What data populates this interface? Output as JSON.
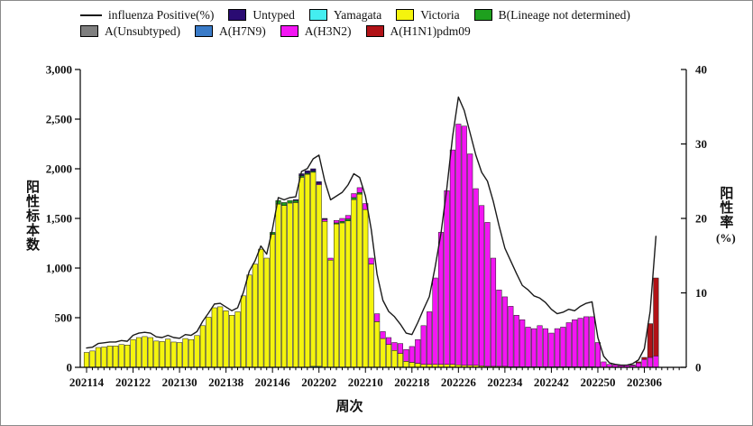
{
  "legend": {
    "items": [
      {
        "label": "influenza Positive(%)",
        "swatch": "line",
        "color": "#1a1a1a",
        "row": 1
      },
      {
        "label": "Untyped",
        "swatch": "box",
        "color": "#2a0b73",
        "row": 1
      },
      {
        "label": "Yamagata",
        "swatch": "box",
        "color": "#44eef0",
        "row": 1
      },
      {
        "label": "Victoria",
        "swatch": "box",
        "color": "#f4f40e",
        "row": 1
      },
      {
        "label": "B(Lineage not determined)",
        "swatch": "box",
        "color": "#1ea01e",
        "row": 1
      },
      {
        "label": "A(Unsubtyped)",
        "swatch": "box",
        "color": "#7f7f7f",
        "row": 2
      },
      {
        "label": "A(H7N9)",
        "swatch": "box",
        "color": "#3a7bc8",
        "row": 2
      },
      {
        "label": "A(H3N2)",
        "swatch": "box",
        "color": "#f316f3",
        "row": 2
      },
      {
        "label": "A(H1N1)pdm09",
        "swatch": "box",
        "color": "#b11217",
        "row": 2
      }
    ]
  },
  "chart_data": {
    "type": "bar",
    "subtype": "stacked-bars-with-line-overlay",
    "x_axis": {
      "label": "周次",
      "tick_labels": [
        "202114",
        "202122",
        "202130",
        "202138",
        "202146",
        "202202",
        "202210",
        "202218",
        "202226",
        "202234",
        "202242",
        "202250",
        "202306"
      ],
      "weeks": [
        "202114",
        "202115",
        "202116",
        "202117",
        "202118",
        "202119",
        "202120",
        "202121",
        "202122",
        "202123",
        "202124",
        "202125",
        "202126",
        "202127",
        "202128",
        "202129",
        "202130",
        "202131",
        "202132",
        "202133",
        "202134",
        "202135",
        "202136",
        "202137",
        "202138",
        "202139",
        "202140",
        "202141",
        "202142",
        "202143",
        "202144",
        "202145",
        "202146",
        "202147",
        "202148",
        "202149",
        "202150",
        "202151",
        "202152",
        "202201",
        "202202",
        "202203",
        "202204",
        "202205",
        "202206",
        "202207",
        "202208",
        "202209",
        "202210",
        "202211",
        "202212",
        "202213",
        "202214",
        "202215",
        "202216",
        "202217",
        "202218",
        "202219",
        "202220",
        "202221",
        "202222",
        "202223",
        "202224",
        "202225",
        "202226",
        "202227",
        "202228",
        "202229",
        "202230",
        "202231",
        "202232",
        "202233",
        "202234",
        "202235",
        "202236",
        "202237",
        "202238",
        "202239",
        "202240",
        "202241",
        "202242",
        "202243",
        "202244",
        "202245",
        "202246",
        "202247",
        "202248",
        "202249",
        "202250",
        "202251",
        "202252",
        "202301",
        "202302",
        "202303",
        "202304",
        "202305",
        "202306",
        "202307",
        "202308"
      ]
    },
    "y_left": {
      "label": "阳性标本数",
      "ticks": [
        "0",
        "500",
        "1,000",
        "1,500",
        "2,000",
        "2,500",
        "3,000"
      ],
      "tick_values": [
        0,
        500,
        1000,
        1500,
        2000,
        2500,
        3000
      ],
      "min": 0,
      "max": 3000
    },
    "y_right": {
      "label": "阳性率",
      "unit": "(%)",
      "ticks": [
        "0",
        "10",
        "20",
        "30",
        "40"
      ],
      "tick_values": [
        0,
        10,
        20,
        30,
        40
      ],
      "min": 0,
      "max": 40
    },
    "stack_order_bottom_to_top": [
      "yamagata",
      "victoria",
      "b_lineage_not_determined",
      "h3n2",
      "h1n1pdm09",
      "untyped"
    ],
    "series": [
      {
        "key": "yamagata",
        "name": "Yamagata",
        "color": "#44eef0",
        "values": [
          0,
          0,
          0,
          0,
          0,
          0,
          0,
          0,
          0,
          0,
          0,
          0,
          0,
          0,
          0,
          0,
          0,
          0,
          0,
          0,
          0,
          0,
          0,
          0,
          0,
          0,
          0,
          0,
          0,
          0,
          0,
          0,
          0,
          0,
          0,
          0,
          0,
          0,
          0,
          10,
          10,
          0,
          0,
          0,
          0,
          0,
          0,
          0,
          0,
          0,
          0,
          0,
          0,
          0,
          0,
          0,
          0,
          0,
          0,
          0,
          0,
          0,
          0,
          0,
          0,
          0,
          0,
          0,
          0,
          0,
          0,
          0,
          0,
          0,
          0,
          0,
          0,
          0,
          0,
          0,
          0,
          0,
          0,
          0,
          0,
          0,
          0,
          0,
          0,
          0,
          0,
          0,
          0,
          0,
          0,
          0,
          0,
          0,
          0
        ]
      },
      {
        "key": "victoria",
        "name": "Victoria",
        "color": "#f4f40e",
        "values": [
          150,
          165,
          200,
          205,
          215,
          215,
          230,
          225,
          280,
          300,
          310,
          300,
          265,
          260,
          285,
          255,
          250,
          290,
          280,
          320,
          420,
          505,
          600,
          610,
          570,
          525,
          560,
          720,
          930,
          1040,
          1190,
          1100,
          1340,
          1645,
          1630,
          1655,
          1660,
          1915,
          1945,
          1955,
          1830,
          1470,
          1080,
          1445,
          1455,
          1475,
          1690,
          1745,
          1590,
          1040,
          460,
          290,
          230,
          170,
          140,
          60,
          50,
          40,
          30,
          30,
          30,
          30,
          30,
          30,
          25,
          20,
          20,
          20,
          15,
          10,
          10,
          10,
          10,
          5,
          5,
          5,
          5,
          5,
          5,
          5,
          5,
          5,
          5,
          5,
          5,
          5,
          5,
          5,
          0,
          0,
          0,
          0,
          0,
          0,
          0,
          0,
          0,
          0,
          0
        ]
      },
      {
        "key": "b_lineage_not_determined",
        "name": "B(Lineage not determined)",
        "color": "#1ea01e",
        "values": [
          0,
          0,
          0,
          0,
          0,
          0,
          0,
          0,
          0,
          0,
          0,
          0,
          0,
          0,
          0,
          0,
          0,
          0,
          0,
          0,
          0,
          0,
          0,
          0,
          0,
          0,
          0,
          0,
          0,
          0,
          0,
          0,
          20,
          35,
          30,
          25,
          20,
          15,
          10,
          10,
          0,
          0,
          0,
          10,
          15,
          20,
          20,
          15,
          0,
          0,
          0,
          0,
          0,
          0,
          0,
          0,
          0,
          0,
          0,
          0,
          0,
          0,
          0,
          0,
          0,
          0,
          0,
          0,
          0,
          0,
          0,
          0,
          0,
          0,
          0,
          0,
          0,
          0,
          0,
          0,
          0,
          0,
          0,
          0,
          0,
          0,
          0,
          0,
          0,
          0,
          0,
          0,
          0,
          0,
          0,
          0,
          0,
          0,
          0
        ]
      },
      {
        "key": "h3n2",
        "name": "A(H3N2)",
        "color": "#f316f3",
        "values": [
          0,
          0,
          0,
          0,
          0,
          0,
          0,
          0,
          0,
          0,
          0,
          0,
          0,
          0,
          0,
          0,
          0,
          0,
          0,
          0,
          0,
          0,
          0,
          0,
          0,
          0,
          0,
          0,
          0,
          0,
          0,
          0,
          0,
          0,
          0,
          0,
          0,
          0,
          0,
          0,
          10,
          20,
          20,
          25,
          30,
          35,
          40,
          50,
          60,
          60,
          80,
          70,
          70,
          80,
          100,
          120,
          160,
          240,
          390,
          530,
          870,
          1330,
          1750,
          2160,
          2425,
          2410,
          2130,
          1780,
          1615,
          1450,
          1090,
          770,
          700,
          610,
          520,
          475,
          400,
          385,
          415,
          385,
          340,
          385,
          400,
          445,
          475,
          490,
          505,
          505,
          250,
          55,
          30,
          25,
          18,
          20,
          20,
          45,
          80,
          100,
          115
        ]
      },
      {
        "key": "h1n1pdm09",
        "name": "A(H1N1)pdm09",
        "color": "#b11217",
        "values": [
          0,
          0,
          0,
          0,
          0,
          0,
          0,
          0,
          0,
          0,
          0,
          0,
          0,
          0,
          0,
          0,
          0,
          0,
          0,
          0,
          0,
          0,
          0,
          0,
          0,
          0,
          0,
          0,
          0,
          0,
          0,
          0,
          0,
          0,
          0,
          0,
          0,
          0,
          0,
          0,
          0,
          0,
          0,
          0,
          0,
          0,
          0,
          0,
          0,
          0,
          0,
          0,
          0,
          0,
          0,
          0,
          0,
          0,
          0,
          0,
          0,
          0,
          0,
          0,
          0,
          0,
          0,
          0,
          0,
          0,
          0,
          0,
          0,
          0,
          0,
          0,
          0,
          0,
          0,
          0,
          0,
          0,
          0,
          0,
          0,
          0,
          0,
          0,
          0,
          0,
          0,
          0,
          0,
          0,
          5,
          10,
          20,
          340,
          785
        ]
      },
      {
        "key": "untyped",
        "name": "Untyped",
        "color": "#2a0b73",
        "values": [
          0,
          0,
          0,
          0,
          0,
          0,
          0,
          0,
          0,
          0,
          0,
          0,
          0,
          0,
          0,
          0,
          0,
          0,
          0,
          0,
          0,
          0,
          0,
          0,
          0,
          0,
          0,
          0,
          0,
          0,
          0,
          0,
          0,
          0,
          0,
          0,
          10,
          20,
          25,
          25,
          20,
          10,
          0,
          0,
          0,
          0,
          0,
          0,
          0,
          0,
          0,
          0,
          0,
          0,
          0,
          0,
          0,
          0,
          0,
          0,
          0,
          0,
          0,
          0,
          0,
          0,
          0,
          0,
          0,
          0,
          0,
          0,
          0,
          0,
          0,
          0,
          0,
          0,
          0,
          0,
          0,
          0,
          0,
          0,
          0,
          0,
          0,
          0,
          0,
          0,
          0,
          0,
          0,
          0,
          0,
          0,
          0,
          0,
          0
        ]
      }
    ],
    "line": {
      "name": "influenza Positive(%)",
      "color": "#1a1a1a",
      "axis": "right",
      "values": [
        2.6,
        2.7,
        3.2,
        3.3,
        3.4,
        3.4,
        3.6,
        3.5,
        4.3,
        4.6,
        4.7,
        4.6,
        4.1,
        4.0,
        4.3,
        4.0,
        3.9,
        4.4,
        4.3,
        4.8,
        6.2,
        7.3,
        8.5,
        8.6,
        8.1,
        7.6,
        8.0,
        10.1,
        12.9,
        14.3,
        16.3,
        15.2,
        18.6,
        22.8,
        22.5,
        22.8,
        22.9,
        26.3,
        26.7,
        28.0,
        28.5,
        25.0,
        22.5,
        23.0,
        23.5,
        24.5,
        26.0,
        25.5,
        23.0,
        18.5,
        12.5,
        9.0,
        7.5,
        6.8,
        5.8,
        4.6,
        4.4,
        6.0,
        7.8,
        9.5,
        13.5,
        18.0,
        24.0,
        31.0,
        36.3,
        34.5,
        31.5,
        28.5,
        26.2,
        25.0,
        22.3,
        19.0,
        16.0,
        14.3,
        12.6,
        11.0,
        10.4,
        9.6,
        9.3,
        8.7,
        7.8,
        7.2,
        7.4,
        7.8,
        7.6,
        8.2,
        8.6,
        8.8,
        4.0,
        1.5,
        0.6,
        0.4,
        0.3,
        0.3,
        0.5,
        1.0,
        2.5,
        7.5,
        17.6
      ]
    }
  },
  "titles": {
    "y_left": "阳性标本数",
    "y_right": "阳性率",
    "y_right_unit": "(%)",
    "x": "周次"
  }
}
